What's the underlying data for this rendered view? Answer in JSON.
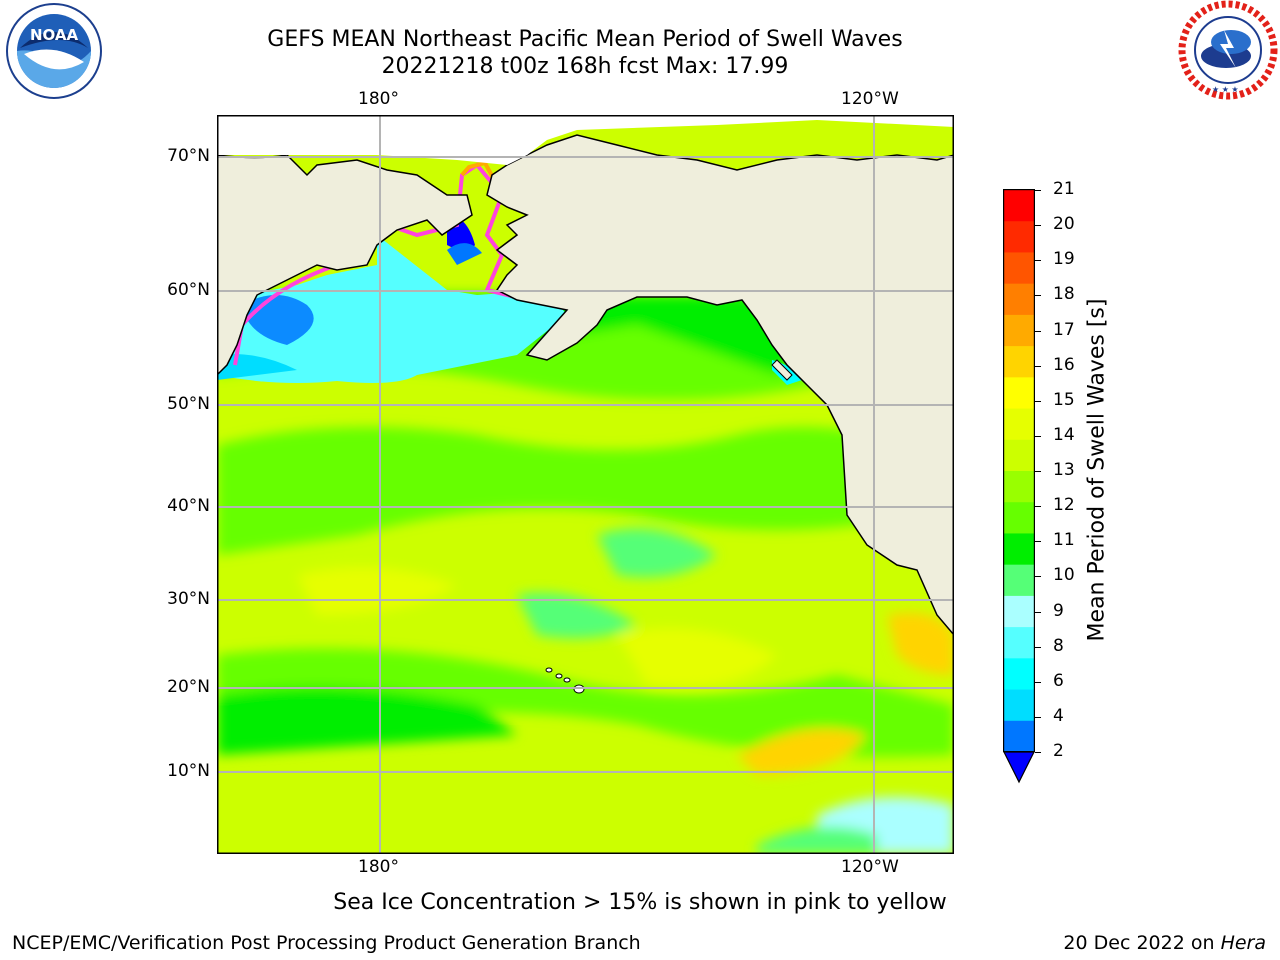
{
  "header": {
    "title_line1": "GEFS MEAN Northeast Pacific Mean Period of Swell Waves",
    "title_line2": "20221218 t00z 168h fcst   Max: 17.99"
  },
  "logos": {
    "left": {
      "icon": "noaa-logo",
      "text": "NOAA",
      "ring_text": "NATIONAL OCEANIC AND ATMOSPHERIC ADMINISTRATION · U.S. DEPARTMENT OF COMMERCE"
    },
    "right": {
      "icon": "nws-logo",
      "ring_text": "NATIONAL WEATHER SERVICE"
    }
  },
  "map": {
    "lon_labels_top": [
      "180°",
      "120°W"
    ],
    "lon_labels_bottom": [
      "180°",
      "120°W"
    ],
    "lat_labels": [
      "70°N",
      "60°N",
      "50°N",
      "40°N",
      "30°N",
      "20°N",
      "10°N"
    ],
    "colors": {
      "land": "#efeedc",
      "coast": "#000000",
      "grid": "#b4b4b4"
    }
  },
  "colorbar": {
    "label": "Mean Period of Swell Waves [s]",
    "ticks": [
      "21",
      "20",
      "19",
      "18",
      "17",
      "16",
      "15",
      "14",
      "13",
      "12",
      "11",
      "10",
      "9",
      "8",
      "6",
      "4",
      "2"
    ],
    "colors_top_to_bottom": [
      "#ff0000",
      "#ff2a00",
      "#ff5500",
      "#ff7f00",
      "#ffaa00",
      "#ffd400",
      "#ffff00",
      "#e6ff00",
      "#ccff00",
      "#99ff00",
      "#66ff00",
      "#00ee00",
      "#55ff77",
      "#aaffff",
      "#55ffff",
      "#00ffff",
      "#00ddff",
      "#0077ff"
    ],
    "under_color": "#0000ff"
  },
  "footer": {
    "ice_note": "Sea Ice Concentration > 15% is shown in pink to yellow",
    "credit": "NCEP/EMC/Verification Post Processing Product Generation Branch",
    "date": "20 Dec 2022 on",
    "machine": "Hera"
  }
}
